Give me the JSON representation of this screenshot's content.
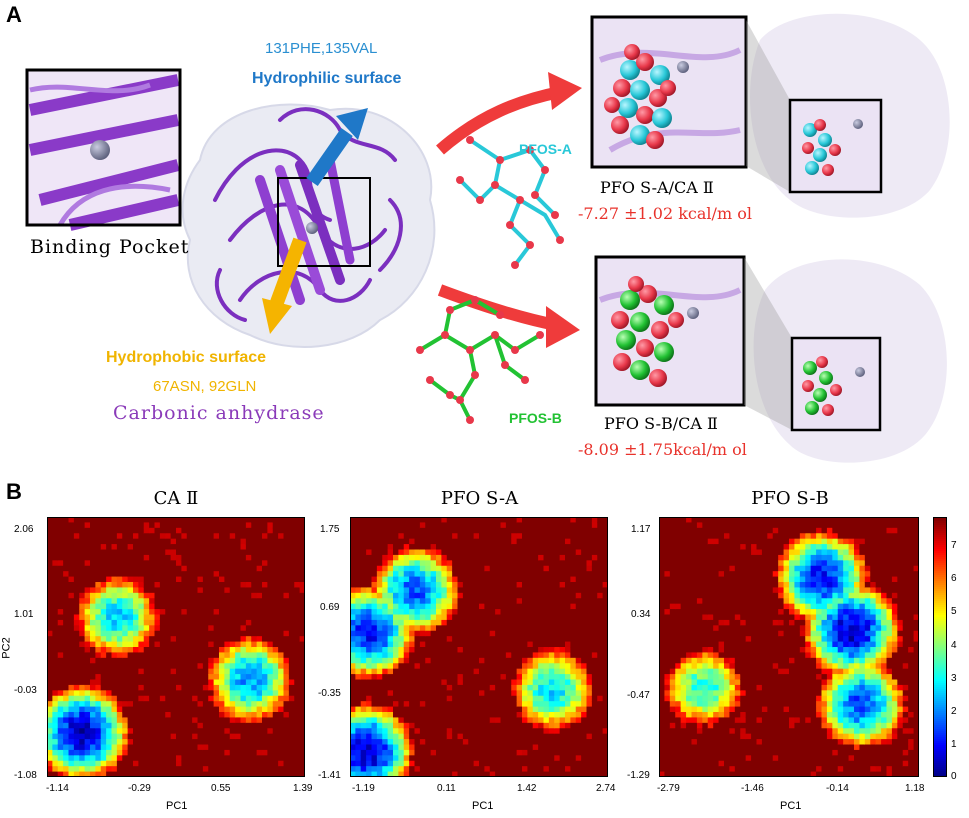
{
  "panel_a": {
    "letter": "A",
    "binding_pocket_label": "Binding Pocket",
    "hydrophilic_residues": "131PHE,135VAL",
    "hydrophilic_label": "Hydrophilic surface",
    "hydrophobic_label": "Hydrophobic surface",
    "hydrophobic_residues": "67ASN, 92GLN",
    "protein_label": "Carbonic anhydrase",
    "ligand_a_label": "PFOS-A",
    "ligand_b_label": "PFOS-B",
    "complex_a_label": "PFO S-A/CA Ⅱ",
    "complex_a_energy": "-7.27 ±1.02 kcal/m ol",
    "complex_b_label": "PFO S-B/CA Ⅱ",
    "complex_b_energy": "-8.09 ±1.75kcal/m ol",
    "colors": {
      "protein": "#7b2fbf",
      "ligand_a": "#29c8d8",
      "ligand_b": "#22c233",
      "oxygen": "#e8384a",
      "arrow_red": "#ef3b3b",
      "arrow_blue": "#1f78c8",
      "arrow_yellow": "#f5b400"
    }
  },
  "panel_b": {
    "letter": "B",
    "colorbar_ticks": [
      "0",
      "1",
      "2",
      "3",
      "4",
      "5",
      "6",
      "7"
    ]
  },
  "chart_data": [
    {
      "type": "heatmap",
      "title": "CA Ⅱ",
      "xlabel": "PC1",
      "ylabel": "PC2",
      "xticks": [
        "-1.14",
        "-0.29",
        "0.55",
        "1.39"
      ],
      "yticks": [
        "2.06",
        "1.01",
        "-0.03",
        "-1.08"
      ],
      "xlim": [
        -1.14,
        1.39
      ],
      "ylim": [
        -1.08,
        2.06
      ],
      "zlim": [
        0,
        7.5
      ],
      "colormap": "jet",
      "basins": [
        {
          "x": -0.8,
          "y": -0.55,
          "min_energy": 0.5
        },
        {
          "x": -0.45,
          "y": 0.85,
          "min_energy": 2.5
        },
        {
          "x": 0.85,
          "y": 0.1,
          "min_energy": 2.0
        }
      ]
    },
    {
      "type": "heatmap",
      "title": "PFO S-A",
      "xlabel": "PC1",
      "ylabel": "",
      "xticks": [
        "-1.19",
        "0.11",
        "1.42",
        "2.74"
      ],
      "yticks": [
        "1.75",
        "0.69",
        "-0.35",
        "-1.41"
      ],
      "xlim": [
        -1.19,
        2.74
      ],
      "ylim": [
        -1.41,
        1.75
      ],
      "zlim": [
        0,
        7.5
      ],
      "colormap": "jet",
      "basins": [
        {
          "x": -0.95,
          "y": -1.1,
          "min_energy": 0.5
        },
        {
          "x": -0.9,
          "y": 0.35,
          "min_energy": 1.0
        },
        {
          "x": -0.2,
          "y": 0.85,
          "min_energy": 1.5
        },
        {
          "x": 1.9,
          "y": -0.35,
          "min_energy": 2.5
        }
      ]
    },
    {
      "type": "heatmap",
      "title": "PFO S-B",
      "xlabel": "PC1",
      "ylabel": "",
      "xticks": [
        "-2.79",
        "-1.46",
        "-0.14",
        "1.18"
      ],
      "yticks": [
        "1.17",
        "0.34",
        "-0.47",
        "-1.29"
      ],
      "xlim": [
        -2.79,
        1.18
      ],
      "ylim": [
        -1.29,
        1.17
      ],
      "zlim": [
        0,
        7.5
      ],
      "colormap": "jet",
      "basins": [
        {
          "x": -0.3,
          "y": 0.6,
          "min_energy": 1.0
        },
        {
          "x": 0.15,
          "y": 0.1,
          "min_energy": 0.5
        },
        {
          "x": 0.3,
          "y": -0.6,
          "min_energy": 1.5
        },
        {
          "x": -2.1,
          "y": -0.45,
          "min_energy": 3.0
        }
      ]
    }
  ]
}
